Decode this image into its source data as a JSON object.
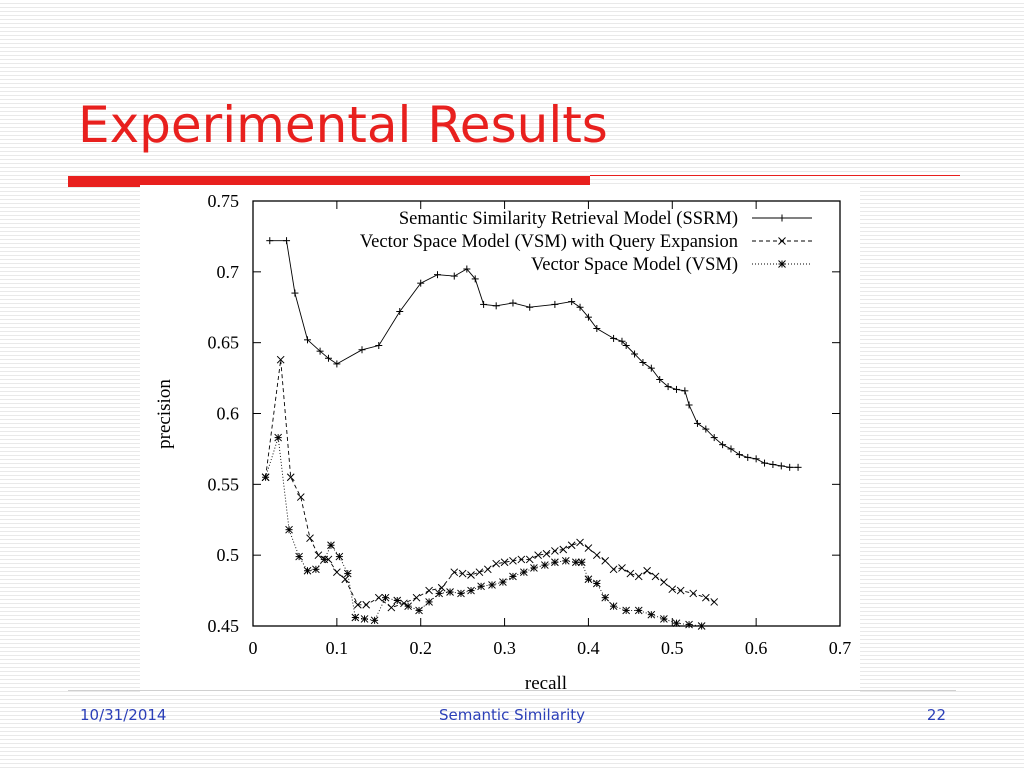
{
  "slide": {
    "title": "Experimental Results",
    "footer_date": "10/31/2014",
    "footer_center": "Semantic Similarity",
    "footer_page": "22"
  },
  "colors": {
    "accent": "#e8201e",
    "footer_text": "#2b3fb8"
  },
  "chart_data": {
    "type": "line",
    "title": "",
    "xlabel": "recall",
    "ylabel": "precision",
    "xlim": [
      0,
      0.7
    ],
    "ylim": [
      0.45,
      0.75
    ],
    "xticks": [
      "0",
      "0.1",
      "0.2",
      "0.3",
      "0.4",
      "0.5",
      "0.6",
      "0.7"
    ],
    "yticks": [
      "0.45",
      "0.5",
      "0.55",
      "0.6",
      "0.65",
      "0.7",
      "0.75"
    ],
    "grid": false,
    "legend_position": "top-right",
    "series": [
      {
        "name": "Semantic Similarity Retrieval Model (SSRM)",
        "marker": "+",
        "dash": "solid",
        "x": [
          0.02,
          0.04,
          0.05,
          0.065,
          0.08,
          0.09,
          0.1,
          0.13,
          0.15,
          0.175,
          0.2,
          0.22,
          0.24,
          0.255,
          0.265,
          0.275,
          0.29,
          0.31,
          0.33,
          0.36,
          0.38,
          0.39,
          0.4,
          0.41,
          0.43,
          0.44,
          0.445,
          0.455,
          0.465,
          0.475,
          0.485,
          0.495,
          0.505,
          0.515,
          0.52,
          0.53,
          0.54,
          0.55,
          0.56,
          0.57,
          0.58,
          0.59,
          0.6,
          0.61,
          0.62,
          0.63,
          0.64,
          0.65
        ],
        "y": [
          0.722,
          0.722,
          0.685,
          0.652,
          0.644,
          0.639,
          0.635,
          0.645,
          0.648,
          0.672,
          0.692,
          0.698,
          0.697,
          0.702,
          0.695,
          0.677,
          0.676,
          0.678,
          0.675,
          0.677,
          0.679,
          0.675,
          0.668,
          0.66,
          0.653,
          0.651,
          0.648,
          0.642,
          0.636,
          0.632,
          0.624,
          0.619,
          0.617,
          0.616,
          0.606,
          0.593,
          0.589,
          0.583,
          0.578,
          0.575,
          0.571,
          0.569,
          0.568,
          0.565,
          0.564,
          0.563,
          0.562,
          0.562
        ]
      },
      {
        "name": "Vector Space Model (VSM) with Query Expansion",
        "marker": "x",
        "dash": "dashed",
        "x": [
          0.015,
          0.033,
          0.045,
          0.057,
          0.068,
          0.078,
          0.09,
          0.1,
          0.11,
          0.125,
          0.135,
          0.15,
          0.165,
          0.18,
          0.195,
          0.21,
          0.225,
          0.24,
          0.25,
          0.26,
          0.27,
          0.28,
          0.29,
          0.3,
          0.31,
          0.32,
          0.33,
          0.34,
          0.35,
          0.36,
          0.37,
          0.38,
          0.39,
          0.4,
          0.41,
          0.42,
          0.43,
          0.44,
          0.45,
          0.46,
          0.47,
          0.48,
          0.49,
          0.5,
          0.51,
          0.525,
          0.54,
          0.55
        ],
        "y": [
          0.555,
          0.638,
          0.555,
          0.541,
          0.512,
          0.5,
          0.497,
          0.488,
          0.483,
          0.465,
          0.465,
          0.47,
          0.463,
          0.466,
          0.47,
          0.475,
          0.477,
          0.488,
          0.487,
          0.486,
          0.488,
          0.49,
          0.494,
          0.495,
          0.496,
          0.497,
          0.497,
          0.5,
          0.501,
          0.503,
          0.504,
          0.507,
          0.509,
          0.505,
          0.5,
          0.496,
          0.49,
          0.491,
          0.487,
          0.485,
          0.489,
          0.485,
          0.481,
          0.476,
          0.475,
          0.473,
          0.47,
          0.467
        ]
      },
      {
        "name": "Vector Space Model (VSM)",
        "marker": "*",
        "dash": "dotted",
        "x": [
          0.015,
          0.03,
          0.043,
          0.055,
          0.065,
          0.075,
          0.085,
          0.093,
          0.103,
          0.113,
          0.122,
          0.133,
          0.145,
          0.158,
          0.172,
          0.185,
          0.198,
          0.21,
          0.222,
          0.235,
          0.248,
          0.26,
          0.272,
          0.285,
          0.298,
          0.31,
          0.323,
          0.335,
          0.348,
          0.36,
          0.373,
          0.385,
          0.392,
          0.4,
          0.41,
          0.42,
          0.43,
          0.445,
          0.46,
          0.475,
          0.49,
          0.505,
          0.52,
          0.535
        ],
        "y": [
          0.555,
          0.583,
          0.518,
          0.499,
          0.489,
          0.49,
          0.497,
          0.507,
          0.499,
          0.487,
          0.456,
          0.455,
          0.454,
          0.47,
          0.468,
          0.464,
          0.461,
          0.467,
          0.473,
          0.474,
          0.473,
          0.475,
          0.478,
          0.479,
          0.481,
          0.485,
          0.488,
          0.491,
          0.493,
          0.495,
          0.496,
          0.495,
          0.495,
          0.483,
          0.48,
          0.47,
          0.464,
          0.461,
          0.461,
          0.458,
          0.455,
          0.452,
          0.451,
          0.45
        ]
      }
    ]
  }
}
